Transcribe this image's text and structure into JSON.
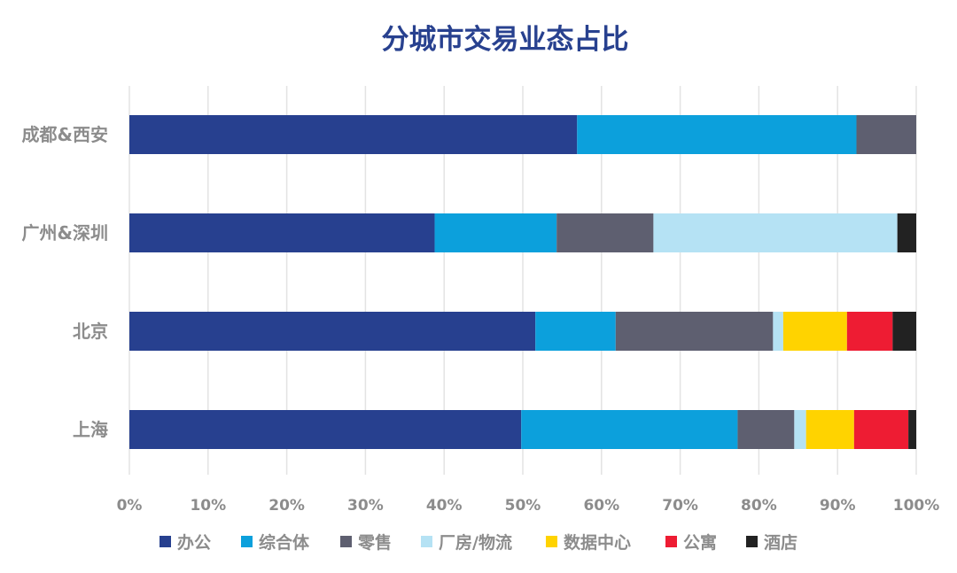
{
  "chart_data": {
    "type": "bar",
    "orientation": "horizontal",
    "stacked": true,
    "title": "分城市交易业态占比",
    "categories": [
      "成都&西安",
      "广州&深圳",
      "北京",
      "上海"
    ],
    "series": [
      {
        "name": "办公",
        "color": "#27408f",
        "values": [
          56.9,
          38.8,
          51.6,
          49.8
        ]
      },
      {
        "name": "综合体",
        "color": "#0ca0dc",
        "values": [
          35.5,
          15.5,
          10.2,
          27.5
        ]
      },
      {
        "name": "零售",
        "color": "#5e5f70",
        "values": [
          7.6,
          12.3,
          20.0,
          7.2
        ]
      },
      {
        "name": "厂房/物流",
        "color": "#b5e2f4",
        "values": [
          0,
          31.0,
          1.3,
          1.5
        ]
      },
      {
        "name": "数据中心",
        "color": "#ffd300",
        "values": [
          0,
          0,
          8.1,
          6.1
        ]
      },
      {
        "name": "公寓",
        "color": "#ee1c33",
        "values": [
          0,
          0,
          5.8,
          6.9
        ]
      },
      {
        "name": "酒店",
        "color": "#222222",
        "values": [
          0,
          2.4,
          3.0,
          1.0
        ]
      }
    ],
    "x_ticks": [
      "0%",
      "10%",
      "20%",
      "30%",
      "40%",
      "50%",
      "60%",
      "70%",
      "80%",
      "90%",
      "100%"
    ],
    "xlim": [
      0,
      100
    ],
    "grid": "vertical",
    "legend_position": "bottom"
  }
}
